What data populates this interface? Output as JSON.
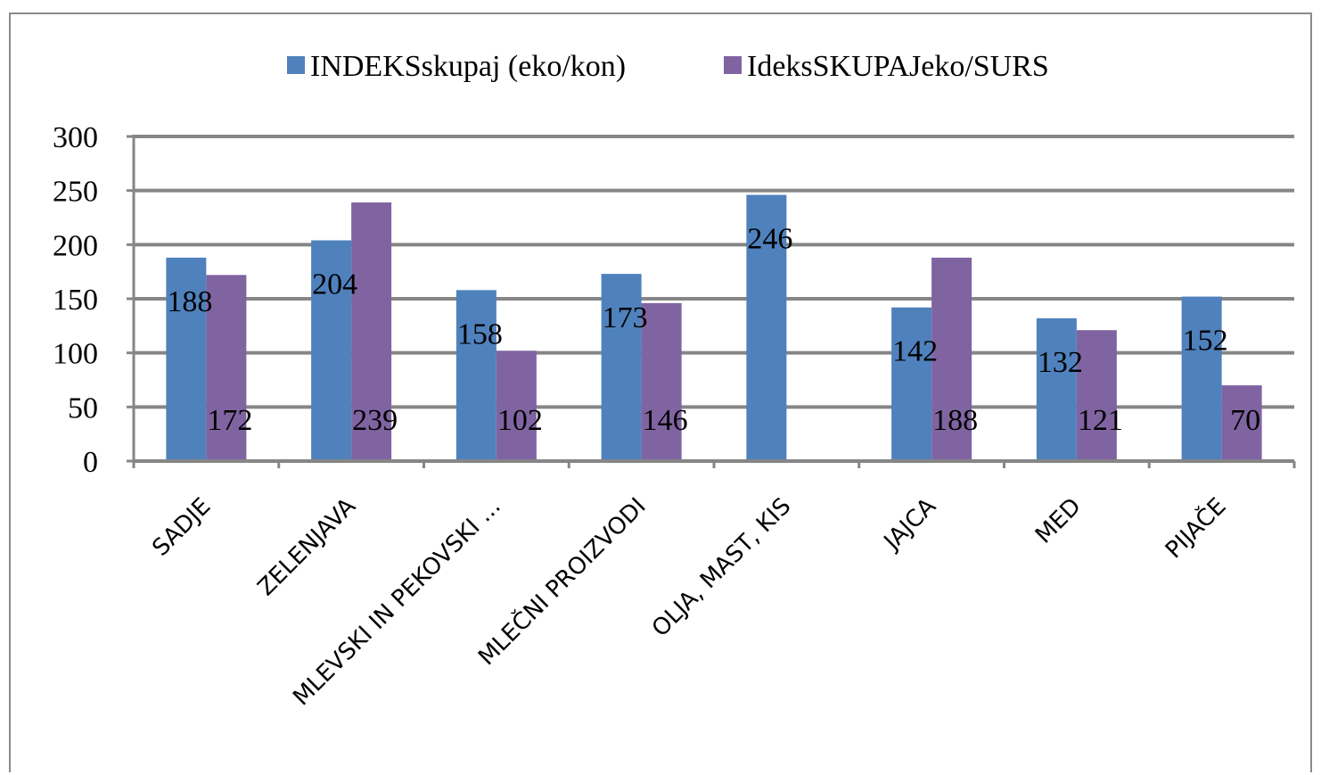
{
  "chart_data": {
    "type": "bar",
    "categories": [
      "SADJE",
      "ZELENJAVA",
      "MLEVSKI IN PEKOVSKI ...",
      "MLEČNI PROIZVODI",
      "OLJA, MAST, KIS",
      "JAJCA",
      "MED",
      "PIJAČE"
    ],
    "series": [
      {
        "name": "INDEKSskupaj (eko/kon)",
        "color": "#4F81BD",
        "values": [
          188,
          204,
          158,
          173,
          246,
          142,
          132,
          152
        ]
      },
      {
        "name": "IdeksSKUPAJeko/SURS",
        "color": "#8064A2",
        "values": [
          172,
          239,
          102,
          146,
          null,
          188,
          121,
          70
        ]
      }
    ],
    "ylim": [
      0,
      300
    ],
    "yticks": [
      0,
      50,
      100,
      150,
      200,
      250,
      300
    ],
    "grid": true,
    "legend": "top",
    "data_labels": true
  }
}
